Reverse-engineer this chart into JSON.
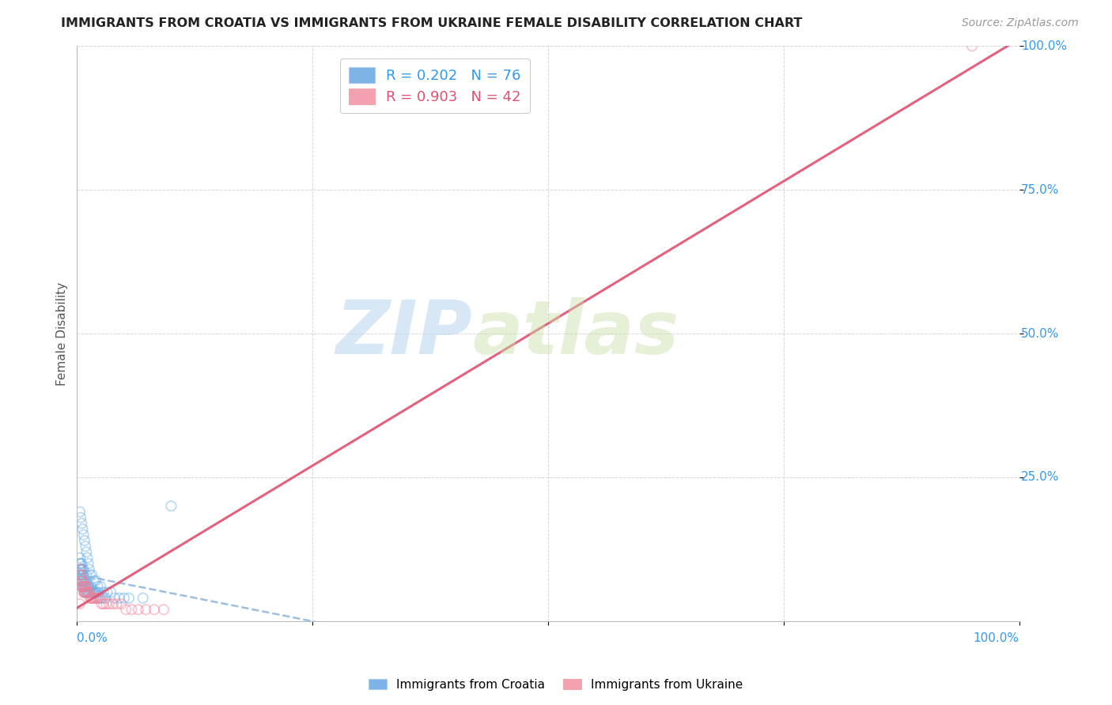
{
  "title": "IMMIGRANTS FROM CROATIA VS IMMIGRANTS FROM UKRAINE FEMALE DISABILITY CORRELATION CHART",
  "source": "Source: ZipAtlas.com",
  "ylabel": "Female Disability",
  "xlim": [
    0.0,
    1.0
  ],
  "ylim": [
    0.0,
    1.0
  ],
  "ytick_positions": [
    0.25,
    0.5,
    0.75,
    1.0
  ],
  "ytick_labels": [
    "25.0%",
    "50.0%",
    "75.0%",
    "100.0%"
  ],
  "legend_entries": [
    {
      "label": "R = 0.202   N = 76",
      "color": "#7eb3e8"
    },
    {
      "label": "R = 0.903   N = 42",
      "color": "#f4a0b0"
    }
  ],
  "legend_bottom_labels": [
    "Immigrants from Croatia",
    "Immigrants from Ukraine"
  ],
  "croatia_color": "#6aaee8",
  "ukraine_color": "#f08098",
  "marker_size": 80,
  "marker_alpha": 0.45,
  "regression_croatia_color": "#4488cc",
  "regression_ukraine_color": "#e05070",
  "watermark_zip": "ZIP",
  "watermark_atlas": "atlas",
  "background_color": "#ffffff",
  "croatia_x": [
    0.002,
    0.003,
    0.003,
    0.003,
    0.004,
    0.004,
    0.004,
    0.004,
    0.005,
    0.005,
    0.005,
    0.005,
    0.005,
    0.006,
    0.006,
    0.006,
    0.006,
    0.007,
    0.007,
    0.007,
    0.007,
    0.008,
    0.008,
    0.008,
    0.009,
    0.009,
    0.01,
    0.01,
    0.01,
    0.01,
    0.011,
    0.011,
    0.012,
    0.012,
    0.013,
    0.013,
    0.014,
    0.015,
    0.015,
    0.016,
    0.017,
    0.018,
    0.019,
    0.02,
    0.021,
    0.022,
    0.023,
    0.025,
    0.027,
    0.03,
    0.003,
    0.004,
    0.005,
    0.006,
    0.007,
    0.008,
    0.009,
    0.01,
    0.011,
    0.012,
    0.013,
    0.014,
    0.016,
    0.018,
    0.02,
    0.022,
    0.025,
    0.028,
    0.032,
    0.036,
    0.04,
    0.045,
    0.05,
    0.055,
    0.07,
    0.1
  ],
  "croatia_y": [
    0.08,
    0.09,
    0.1,
    0.11,
    0.07,
    0.08,
    0.09,
    0.1,
    0.06,
    0.07,
    0.08,
    0.09,
    0.1,
    0.06,
    0.07,
    0.08,
    0.09,
    0.06,
    0.07,
    0.08,
    0.09,
    0.05,
    0.06,
    0.07,
    0.05,
    0.06,
    0.05,
    0.06,
    0.07,
    0.08,
    0.05,
    0.06,
    0.05,
    0.06,
    0.05,
    0.06,
    0.05,
    0.05,
    0.06,
    0.05,
    0.05,
    0.05,
    0.05,
    0.05,
    0.05,
    0.04,
    0.05,
    0.04,
    0.04,
    0.04,
    0.19,
    0.18,
    0.17,
    0.16,
    0.15,
    0.14,
    0.13,
    0.12,
    0.11,
    0.1,
    0.09,
    0.08,
    0.08,
    0.07,
    0.07,
    0.06,
    0.06,
    0.05,
    0.05,
    0.05,
    0.04,
    0.04,
    0.04,
    0.04,
    0.04,
    0.2
  ],
  "ukraine_x": [
    0.003,
    0.003,
    0.004,
    0.004,
    0.005,
    0.005,
    0.006,
    0.006,
    0.007,
    0.007,
    0.008,
    0.008,
    0.009,
    0.009,
    0.01,
    0.01,
    0.011,
    0.012,
    0.013,
    0.014,
    0.015,
    0.016,
    0.017,
    0.018,
    0.02,
    0.022,
    0.024,
    0.026,
    0.028,
    0.031,
    0.034,
    0.038,
    0.042,
    0.047,
    0.052,
    0.058,
    0.065,
    0.073,
    0.082,
    0.092,
    0.95,
    0.003
  ],
  "ukraine_y": [
    0.08,
    0.09,
    0.07,
    0.08,
    0.06,
    0.07,
    0.06,
    0.07,
    0.05,
    0.06,
    0.05,
    0.06,
    0.05,
    0.06,
    0.05,
    0.06,
    0.05,
    0.05,
    0.05,
    0.04,
    0.04,
    0.04,
    0.04,
    0.04,
    0.04,
    0.04,
    0.04,
    0.03,
    0.03,
    0.03,
    0.03,
    0.03,
    0.03,
    0.03,
    0.02,
    0.02,
    0.02,
    0.02,
    0.02,
    0.02,
    1.0,
    0.03
  ],
  "croatia_R": 0.202,
  "croatia_N": 76,
  "ukraine_R": 0.903,
  "ukraine_N": 42,
  "grid_color": "#cccccc",
  "tick_label_color": "#3399ee"
}
